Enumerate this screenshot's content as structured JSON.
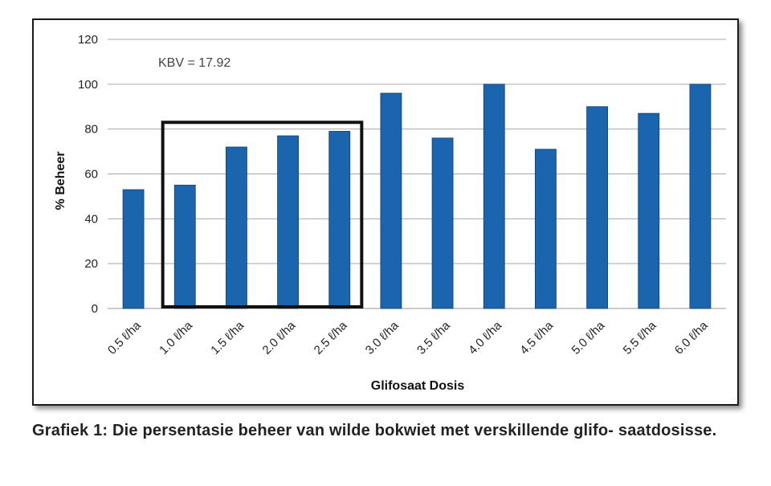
{
  "chart_data": {
    "type": "bar",
    "categories": [
      "0.5 ℓ/ha",
      "1.0 ℓ/ha",
      "1.5 ℓ/ha",
      "2.0 ℓ/ha",
      "2.5 ℓ/ha",
      "3.0 ℓ/ha",
      "3.5 ℓ/ha",
      "4.0 ℓ/ha",
      "4.5 ℓ/ha",
      "5.0 ℓ/ha",
      "5.5 ℓ/ha",
      "6.0 ℓ/ha"
    ],
    "values": [
      53,
      55,
      72,
      77,
      79,
      96,
      76,
      100,
      71,
      90,
      87,
      100
    ],
    "xlabel": "Glifosaat Dosis",
    "ylabel": "% Beheer",
    "ylim": [
      0,
      120
    ],
    "yticks": [
      0,
      20,
      40,
      60,
      80,
      100,
      120
    ],
    "annotation": "KBV = 17.92",
    "highlight": {
      "from_category": "1.0 ℓ/ha",
      "to_category": "2.5 ℓ/ha",
      "top_value": 83
    },
    "grid": true,
    "legend": "none",
    "bar_color": "#1b64ae"
  },
  "caption": "Grafiek 1: Die persentasie beheer van wilde bokwiet met verskillende glifo- saatdosisse."
}
